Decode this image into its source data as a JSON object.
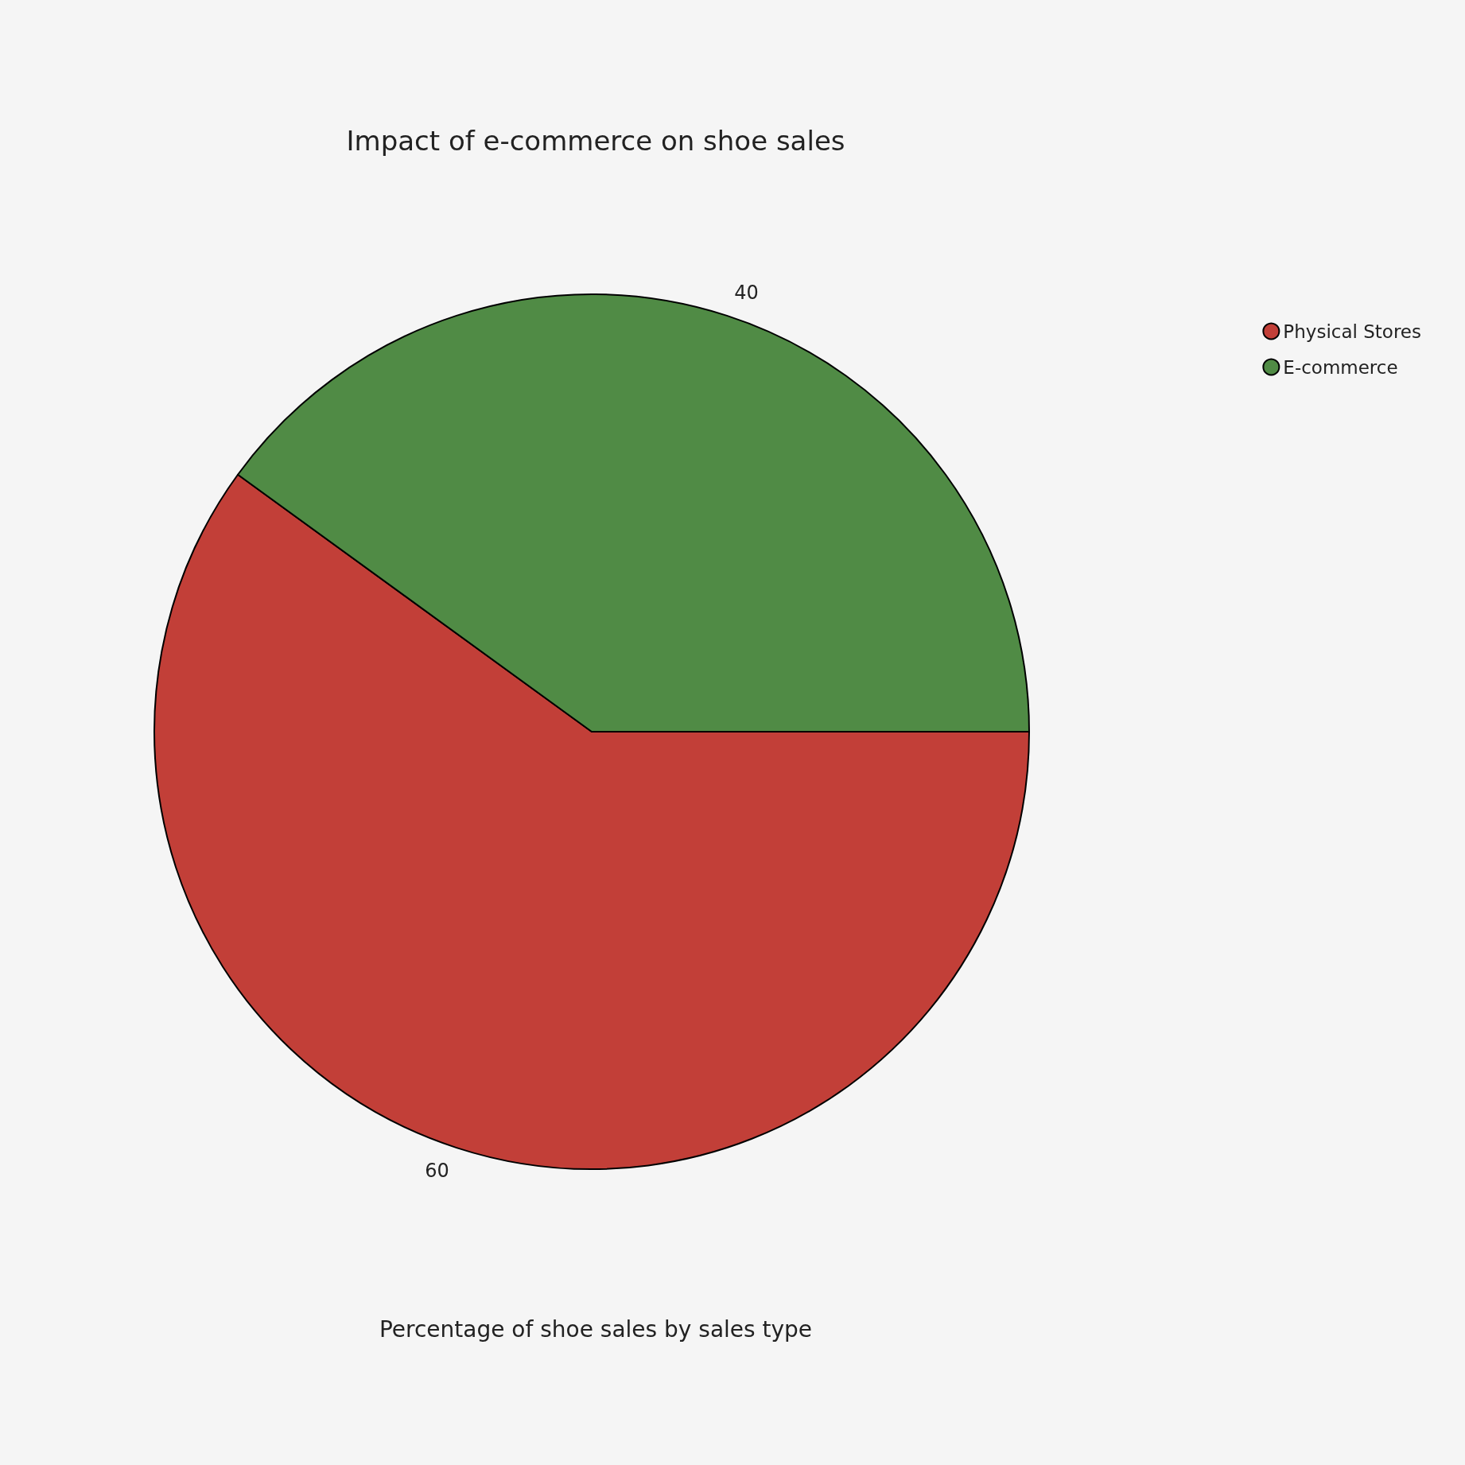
{
  "chart_data": {
    "type": "pie",
    "title": "Impact of e-commerce on shoe sales",
    "subtitle": "Percentage of shoe sales by sales type",
    "categories": [
      "Physical Stores",
      "E-commerce"
    ],
    "values": [
      60,
      40
    ],
    "colors": [
      "#c23f38",
      "#508b45"
    ],
    "data_labels": true,
    "legend": "top right"
  }
}
